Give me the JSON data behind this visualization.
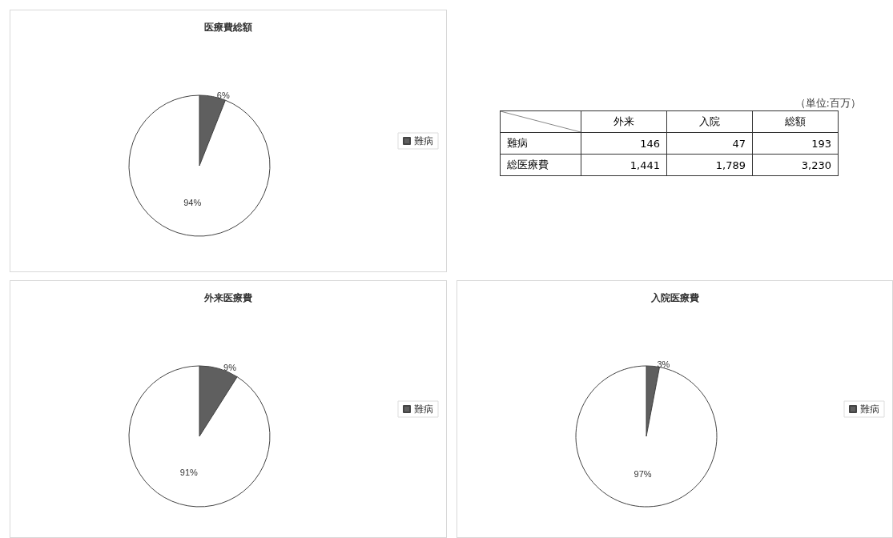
{
  "chart_data": [
    {
      "type": "pie",
      "title": "医療費総額",
      "categories": [
        "難病",
        null
      ],
      "values": [
        6,
        94
      ],
      "colors": [
        "#5f5f5f",
        "#ffffff"
      ],
      "value_labels": [
        "6%",
        "94%"
      ],
      "legend": "right"
    },
    {
      "type": "other",
      "annotations": [
        "（単位:百万）"
      ],
      "categories": [
        "外来",
        "入院",
        "総額"
      ],
      "y_categories": [
        "難病",
        "総医療費"
      ],
      "cell_labels": [
        [
          "146",
          "47",
          "193"
        ],
        [
          "1,441",
          "1,789",
          "3,230"
        ]
      ]
    },
    {
      "type": "pie",
      "title": "外来医療費",
      "categories": [
        "難病",
        null
      ],
      "values": [
        9,
        91
      ],
      "colors": [
        "#5f5f5f",
        "#ffffff"
      ],
      "value_labels": [
        "9%",
        "91%"
      ],
      "legend": "right"
    },
    {
      "type": "pie",
      "title": "入院医療費",
      "categories": [
        "難病",
        null
      ],
      "values": [
        3,
        97
      ],
      "colors": [
        "#5f5f5f",
        "#ffffff"
      ],
      "value_labels": [
        "3%",
        "97%"
      ],
      "legend": "right"
    }
  ]
}
